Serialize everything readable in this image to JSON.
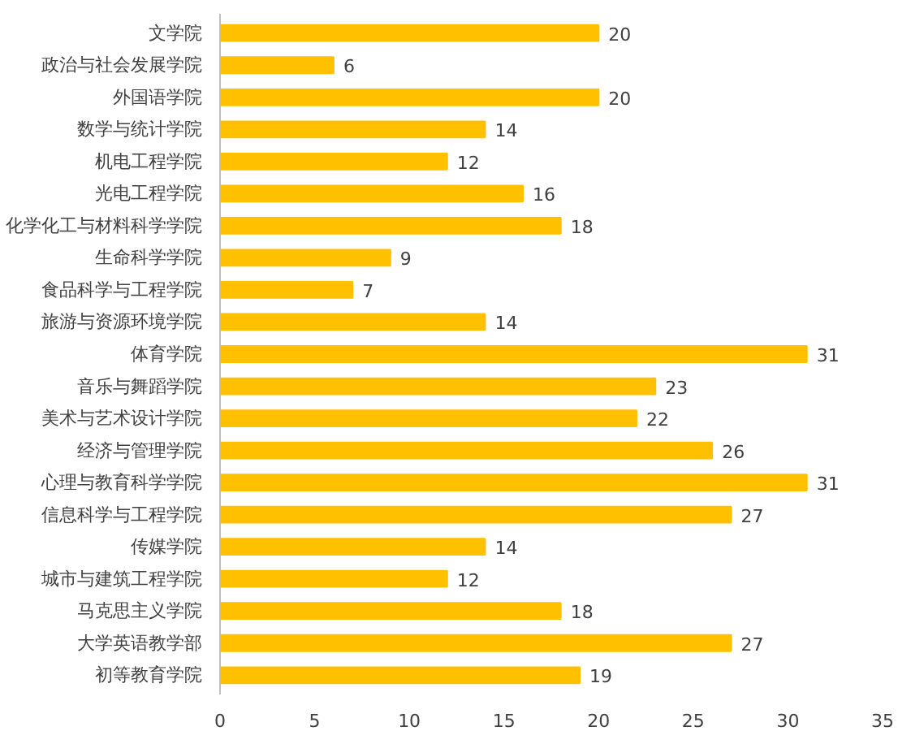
{
  "chart_data": {
    "type": "bar",
    "orientation": "horizontal",
    "categories": [
      "文学院",
      "政治与社会发展学院",
      "外国语学院",
      "数学与统计学院",
      "机电工程学院",
      "光电工程学院",
      "化学化工与材料科学学院",
      "生命科学学院",
      "食品科学与工程学院",
      "旅游与资源环境学院",
      "体育学院",
      "音乐与舞蹈学院",
      "美术与艺术设计学院",
      "经济与管理学院",
      "心理与教育科学学院",
      "信息科学与工程学院",
      "传媒学院",
      "城市与建筑工程学院",
      "马克思主义学院",
      "大学英语教学部",
      "初等教育学院"
    ],
    "values": [
      20,
      6,
      20,
      14,
      12,
      16,
      18,
      9,
      7,
      14,
      31,
      23,
      22,
      26,
      31,
      27,
      14,
      12,
      18,
      27,
      19
    ],
    "color": "#ffc000",
    "xlim": [
      0,
      35
    ],
    "xticks": [
      0,
      5,
      10,
      15,
      20,
      25,
      30,
      35
    ],
    "data_labels": true,
    "grid": false
  }
}
